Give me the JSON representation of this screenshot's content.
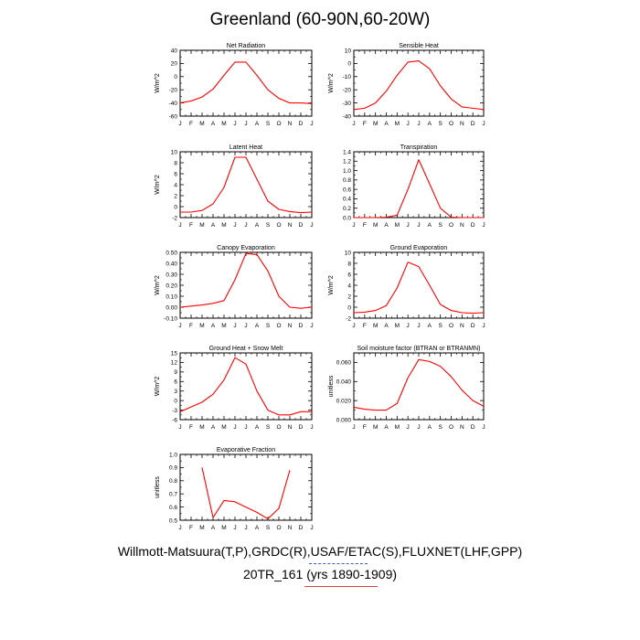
{
  "header": {
    "title": "Greenland (60-90N,60-20W)",
    "source": "Willmott-Matsuura(T,P),GRDC(R),USAF/ETAC(S),FLUXNET(LHF,GPP)",
    "case": "20TR_161 (yrs 1890-1909)"
  },
  "colors": {
    "line": "#ff0000",
    "axis": "#000000"
  },
  "chart_data": [
    {
      "type": "line",
      "title": "Net Radiation",
      "ylabel": "W/m^2",
      "categories": [
        "J",
        "F",
        "M",
        "A",
        "M",
        "J",
        "J",
        "A",
        "S",
        "O",
        "N",
        "D",
        "J"
      ],
      "ylim": [
        -60,
        40
      ],
      "yticks": [
        40,
        20,
        0,
        -20,
        -40,
        -60
      ],
      "ytick_labels": [
        "40",
        "20",
        "0",
        "-20",
        "-40",
        "-60"
      ],
      "values": [
        -40,
        -37,
        -31,
        -19,
        2,
        22,
        22,
        2,
        -20,
        -33,
        -40,
        -40,
        -41
      ],
      "grid": false,
      "legend": "none"
    },
    {
      "type": "line",
      "title": "Sensible Heat",
      "ylabel": "W/m^2",
      "categories": [
        "J",
        "F",
        "M",
        "A",
        "M",
        "J",
        "J",
        "A",
        "S",
        "O",
        "N",
        "D",
        "J"
      ],
      "ylim": [
        -40,
        10
      ],
      "yticks": [
        10,
        0,
        -10,
        -20,
        -30,
        -40
      ],
      "ytick_labels": [
        "10",
        "0",
        "-10",
        "-20",
        "-30",
        "-40"
      ],
      "values": [
        -35,
        -34,
        -30,
        -21,
        -9,
        1,
        2,
        -4,
        -17,
        -27,
        -33,
        -34,
        -35
      ],
      "grid": false,
      "legend": "none"
    },
    {
      "type": "line",
      "title": "Latent Heat",
      "ylabel": "W/m^2",
      "categories": [
        "J",
        "F",
        "M",
        "A",
        "M",
        "J",
        "J",
        "A",
        "S",
        "O",
        "N",
        "D",
        "J"
      ],
      "ylim": [
        -2,
        10
      ],
      "yticks": [
        10,
        8,
        6,
        4,
        2,
        0,
        -2
      ],
      "ytick_labels": [
        "10",
        "8",
        "6",
        "4",
        "2",
        "0",
        "-2"
      ],
      "values": [
        -1,
        -1,
        -0.7,
        0.5,
        3.5,
        9,
        9,
        5,
        1,
        -0.5,
        -0.9,
        -1.1,
        -1
      ],
      "grid": false,
      "legend": "none"
    },
    {
      "type": "line",
      "title": "Transpiration",
      "ylabel": "",
      "categories": [
        "J",
        "F",
        "M",
        "A",
        "M",
        "J",
        "J",
        "A",
        "S",
        "O",
        "N",
        "D",
        "J"
      ],
      "ylim": [
        0,
        1.4
      ],
      "yticks": [
        1.4,
        1.2,
        1.0,
        0.8,
        0.6,
        0.4,
        0.2,
        0.0
      ],
      "ytick_labels": [
        "1.4",
        "1.2",
        "1.0",
        "0.8",
        "0.6",
        "0.4",
        "0.2",
        "0.0"
      ],
      "values": [
        0,
        0,
        0,
        0.01,
        0.05,
        0.6,
        1.23,
        0.72,
        0.2,
        0.01,
        0,
        0,
        0
      ],
      "grid": false,
      "legend": "none"
    },
    {
      "type": "line",
      "title": "Canopy Evaporation",
      "ylabel": "W/m^2",
      "categories": [
        "J",
        "F",
        "M",
        "A",
        "M",
        "J",
        "J",
        "A",
        "S",
        "O",
        "N",
        "D",
        "J"
      ],
      "ylim": [
        -0.1,
        0.5
      ],
      "yticks": [
        0.5,
        0.4,
        0.3,
        0.2,
        0.1,
        0.0,
        -0.1
      ],
      "ytick_labels": [
        "0.50",
        "0.40",
        "0.30",
        "0.20",
        "0.10",
        "0.00",
        "-0.10"
      ],
      "values": [
        0,
        0.01,
        0.02,
        0.035,
        0.06,
        0.25,
        0.49,
        0.48,
        0.33,
        0.1,
        0,
        -0.01,
        0
      ],
      "grid": false,
      "legend": "none"
    },
    {
      "type": "line",
      "title": "Ground Evaporation",
      "ylabel": "W/m^2",
      "categories": [
        "J",
        "F",
        "M",
        "A",
        "M",
        "J",
        "J",
        "A",
        "S",
        "O",
        "N",
        "D",
        "J"
      ],
      "ylim": [
        -2,
        10
      ],
      "yticks": [
        10,
        8,
        6,
        4,
        2,
        0,
        -2
      ],
      "ytick_labels": [
        "10",
        "8",
        "6",
        "4",
        "2",
        "0",
        "-2"
      ],
      "values": [
        -1,
        -0.9,
        -0.6,
        0.3,
        3.5,
        8.2,
        7.4,
        4,
        0.5,
        -0.6,
        -1,
        -1.1,
        -1
      ],
      "grid": false,
      "legend": "none"
    },
    {
      "type": "line",
      "title": "Ground Heat + Snow Melt",
      "ylabel": "W/m^2",
      "categories": [
        "J",
        "F",
        "M",
        "A",
        "M",
        "J",
        "J",
        "A",
        "S",
        "O",
        "N",
        "D",
        "J"
      ],
      "ylim": [
        -6,
        15
      ],
      "yticks": [
        15,
        12,
        9,
        6,
        3,
        0,
        -3,
        -6
      ],
      "ytick_labels": [
        "15",
        "12",
        "9",
        "6",
        "3",
        "0",
        "-3",
        "-6"
      ],
      "values": [
        -3.5,
        -2,
        -0.5,
        2,
        6.5,
        13.5,
        11.5,
        3,
        -3,
        -4.5,
        -4.5,
        -3.5,
        -3.5
      ],
      "grid": false,
      "legend": "none"
    },
    {
      "type": "line",
      "title": "Soil moisture factor (BTRAN or BTRANMN)",
      "ylabel": "unitless",
      "categories": [
        "J",
        "F",
        "M",
        "A",
        "M",
        "J",
        "J",
        "A",
        "S",
        "O",
        "N",
        "D",
        "J"
      ],
      "ylim": [
        0,
        0.07
      ],
      "yticks": [
        0.06,
        0.04,
        0.02,
        0.0
      ],
      "ytick_labels": [
        "0.060",
        "0.040",
        "0.020",
        "0.000"
      ],
      "values": [
        0.013,
        0.011,
        0.01,
        0.01,
        0.017,
        0.044,
        0.063,
        0.061,
        0.056,
        0.045,
        0.031,
        0.02,
        0.014
      ],
      "grid": false,
      "legend": "none"
    },
    {
      "type": "line",
      "title": "Evaporative Fraction",
      "ylabel": "unitless",
      "categories": [
        "J",
        "F",
        "M",
        "A",
        "M",
        "J",
        "J",
        "A",
        "S",
        "O",
        "N",
        "D",
        "J"
      ],
      "ylim": [
        0.5,
        1.0
      ],
      "yticks": [
        1.0,
        0.9,
        0.8,
        0.7,
        0.6,
        0.5
      ],
      "ytick_labels": [
        "1.0",
        "0.9",
        "0.8",
        "0.7",
        "0.6",
        "0.5"
      ],
      "values": [
        null,
        null,
        0.9,
        0.52,
        0.65,
        0.64,
        0.6,
        0.56,
        0.51,
        0.59,
        0.88,
        null,
        null
      ],
      "grid": false,
      "legend": "none"
    }
  ]
}
